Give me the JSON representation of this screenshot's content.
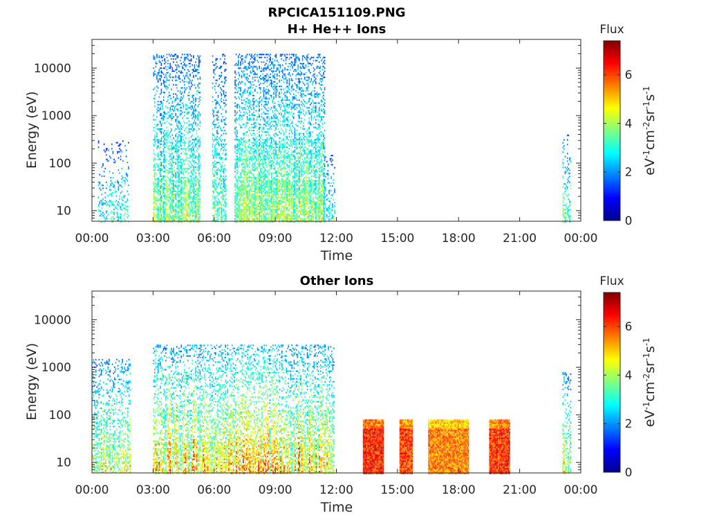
{
  "figure_title": "RPCICA151109.PNG",
  "chart_data": [
    {
      "type": "heatmap",
      "title": "H+ He++ Ions",
      "xlabel": "Time",
      "ylabel": "Energy (eV)",
      "x_ticks": [
        "00:00",
        "03:00",
        "06:00",
        "09:00",
        "12:00",
        "15:00",
        "18:00",
        "21:00",
        "00:00"
      ],
      "xlim_hours": [
        0,
        24
      ],
      "y_scale": "log",
      "y_ticks": [
        10,
        100,
        1000,
        10000
      ],
      "ylim_eV": [
        6,
        40000
      ],
      "colorbar": {
        "label": "Flux",
        "units": "eV-1cm-2sr-1s-1",
        "range": [
          0,
          7.4
        ],
        "ticks": [
          0,
          2,
          4,
          6
        ],
        "colormap": "jet"
      },
      "grid": false,
      "activity_blocks": [
        {
          "t_start": 0.3,
          "t_end": 1.8,
          "e_min": 6,
          "e_max": 300,
          "flux_peak": 3.5,
          "density": 0.35
        },
        {
          "t_start": 3.0,
          "t_end": 5.3,
          "e_min": 6,
          "e_max": 20000,
          "flux_peak": 4.2,
          "density": 0.75
        },
        {
          "t_start": 5.9,
          "t_end": 6.6,
          "e_min": 6,
          "e_max": 20000,
          "flux_peak": 3.8,
          "density": 0.6
        },
        {
          "t_start": 7.0,
          "t_end": 11.4,
          "e_min": 6,
          "e_max": 20000,
          "flux_peak": 4.4,
          "density": 0.85
        },
        {
          "t_start": 11.4,
          "t_end": 11.9,
          "e_min": 6,
          "e_max": 150,
          "flux_peak": 3.5,
          "density": 0.5
        },
        {
          "t_start": 23.1,
          "t_end": 23.5,
          "e_min": 6,
          "e_max": 400,
          "flux_peak": 4.0,
          "density": 0.5
        }
      ]
    },
    {
      "type": "heatmap",
      "title": "Other Ions",
      "xlabel": "Time",
      "ylabel": "Energy (eV)",
      "x_ticks": [
        "00:00",
        "03:00",
        "06:00",
        "09:00",
        "12:00",
        "15:00",
        "18:00",
        "21:00",
        "00:00"
      ],
      "xlim_hours": [
        0,
        24
      ],
      "y_scale": "log",
      "y_ticks": [
        10,
        100,
        1000,
        10000
      ],
      "ylim_eV": [
        6,
        40000
      ],
      "colorbar": {
        "label": "Flux",
        "units": "eV-1cm-2sr-1s-1",
        "range": [
          0,
          7.4
        ],
        "ticks": [
          0,
          2,
          4,
          6
        ],
        "colormap": "jet"
      },
      "grid": false,
      "activity_blocks": [
        {
          "t_start": 0.0,
          "t_end": 1.9,
          "e_min": 6,
          "e_max": 1500,
          "flux_peak": 4.8,
          "density": 0.6
        },
        {
          "t_start": 3.0,
          "t_end": 11.9,
          "e_min": 6,
          "e_max": 3000,
          "flux_peak": 5.5,
          "density": 0.7
        },
        {
          "t_start": 13.3,
          "t_end": 14.3,
          "e_min": 6,
          "e_max": 80,
          "flux_peak": 7.0,
          "density": 1.0
        },
        {
          "t_start": 15.1,
          "t_end": 15.7,
          "e_min": 6,
          "e_max": 80,
          "flux_peak": 6.8,
          "density": 1.0
        },
        {
          "t_start": 16.5,
          "t_end": 18.5,
          "e_min": 6,
          "e_max": 80,
          "flux_peak": 6.2,
          "density": 1.0
        },
        {
          "t_start": 19.5,
          "t_end": 20.5,
          "e_min": 6,
          "e_max": 80,
          "flux_peak": 6.9,
          "density": 1.0
        },
        {
          "t_start": 23.1,
          "t_end": 23.5,
          "e_min": 6,
          "e_max": 800,
          "flux_peak": 4.8,
          "density": 0.6
        }
      ]
    }
  ]
}
